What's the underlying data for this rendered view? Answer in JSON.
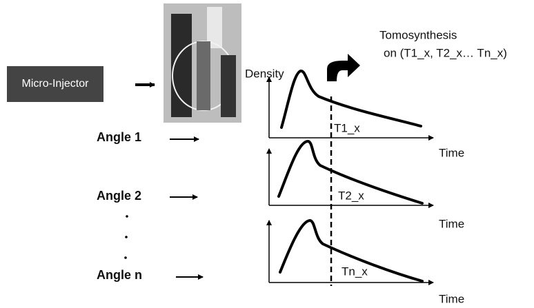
{
  "injector": {
    "label": "Micro-Injector"
  },
  "tomosynthesis": {
    "line1": "Tomosynthesis",
    "line2": "on (T1_x, T2_x… Tn_x)"
  },
  "y_axis_label": "Density",
  "angles": [
    {
      "label": "Angle 1",
      "time_point": "T1_x",
      "x_axis_label": "Time"
    },
    {
      "label": "Angle 2",
      "time_point": "T2_x",
      "x_axis_label": "Time"
    },
    {
      "label": "Angle n",
      "time_point": "Tn_x",
      "x_axis_label": "Time"
    }
  ]
}
